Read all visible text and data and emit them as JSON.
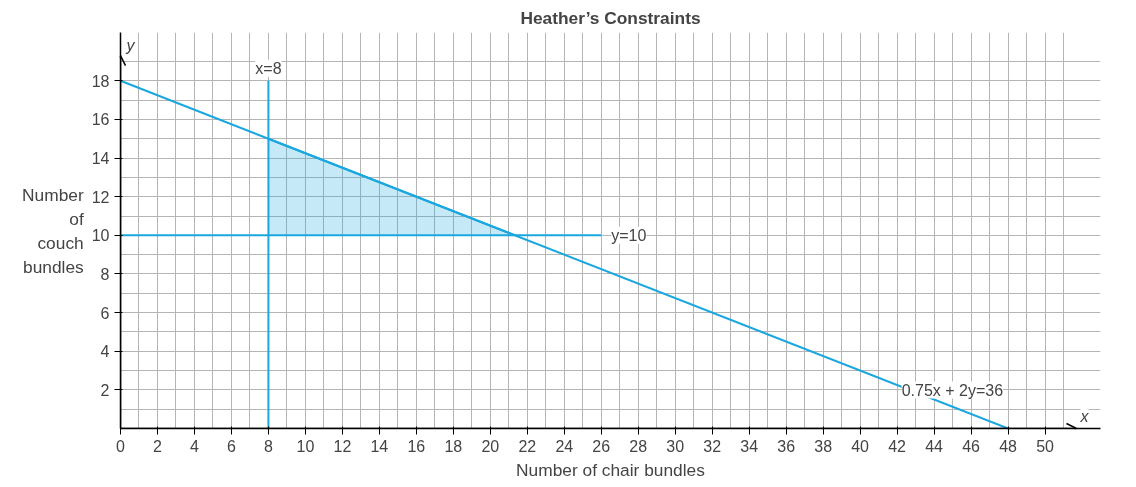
{
  "chart_data": {
    "type": "line",
    "title": "Heather’s Constraints",
    "xlabel": "Number of chair bundles",
    "ylabel": "Number\nof\ncouch\nbundles",
    "series": [
      {
        "color": "#1aa7e0",
        "x": [
          8,
          21.33
        ],
        "values": [
          15,
          10
        ],
        "lower": [
          10,
          10
        ],
        "upper": [
          15,
          10
        ]
      },
      {
        "name": "0.75x + 2y=36",
        "color": "#1aa7e0",
        "x": [
          0,
          48
        ],
        "values": [
          18,
          0
        ]
      },
      {
        "name": "x=8",
        "color": "#1aa7e0",
        "x": [
          8,
          8
        ],
        "values": [
          0,
          18
        ]
      },
      {
        "name": "y=10",
        "color": "#1aa7e0",
        "x": [
          0,
          26
        ],
        "values": [
          10,
          10
        ]
      }
    ],
    "annotations": [
      "y",
      "x"
    ],
    "xlim": [
      0,
      53
    ],
    "ylim": [
      0,
      20.5
    ],
    "xticks": [
      0,
      2,
      4,
      6,
      8,
      10,
      12,
      14,
      16,
      18,
      20,
      22,
      24,
      26,
      28,
      30,
      32,
      34,
      36,
      38,
      40,
      42,
      44,
      46,
      48,
      50
    ],
    "yticks": [
      2,
      4,
      6,
      8,
      10,
      12,
      14,
      16,
      18
    ],
    "grid": true,
    "line_style": "solid",
    "marker": "none"
  }
}
